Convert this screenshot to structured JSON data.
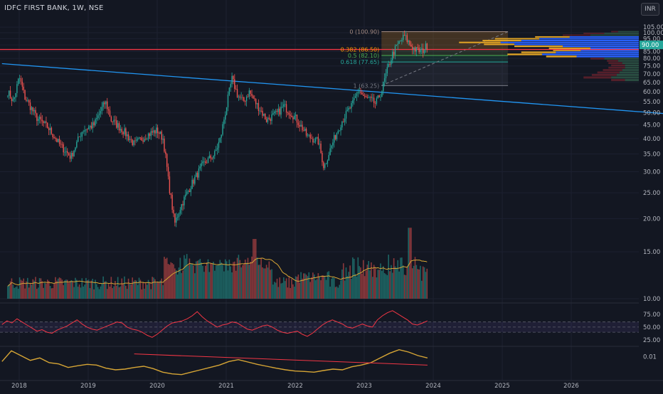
{
  "header": {
    "symbol_line": "IDFC FIRST BANK, 1W, NSE",
    "currency_badge": "INR"
  },
  "colors": {
    "background": "#131722",
    "grid": "#1e2230",
    "axis_text": "#b2b5be",
    "bull": "#26a69a",
    "bear": "#ef5350",
    "trendline": "#2196f3",
    "horizontal_line": "#f23645",
    "volume_ma": "#d6a535",
    "rsi_line": "#f23645",
    "rsi_band": "#7e57c2",
    "lower_line": "#d6a535",
    "lower_line_2": "#f23645",
    "fib_0": "#a1887f",
    "fib_382": "#ff9800",
    "fib_05": "#4caf50",
    "fib_618": "#26a69a",
    "vp_up": "#2962ff",
    "vp_down": "#e0a325"
  },
  "chart_data": {
    "type": "candlestick",
    "interval": "1W",
    "exchange": "NSE",
    "x_axis_labels": [
      "2018",
      "2019",
      "2020",
      "2021",
      "2022",
      "2023",
      "2024",
      "2025",
      "2026"
    ],
    "y_axis_labels": [
      "105.00",
      "100.00",
      "95.00",
      "90.00",
      "85.00",
      "80.00",
      "75.00",
      "70.00",
      "65.00",
      "60.00",
      "55.00",
      "50.00",
      "45.00",
      "40.00",
      "35.00",
      "30.00",
      "25.00",
      "20.00",
      "15.00",
      "10.00"
    ],
    "ylim": [
      8.5,
      107
    ],
    "y_scale": "log",
    "last_price_label": "90.00",
    "price_path": [
      [
        "2017-11",
        60
      ],
      [
        "2017-12",
        55
      ],
      [
        "2018-01",
        68
      ],
      [
        "2018-02",
        57
      ],
      [
        "2018-04",
        48
      ],
      [
        "2018-06",
        44
      ],
      [
        "2018-08",
        38
      ],
      [
        "2018-10",
        34
      ],
      [
        "2018-12",
        43
      ],
      [
        "2019-02",
        45
      ],
      [
        "2019-04",
        55
      ],
      [
        "2019-05",
        47
      ],
      [
        "2019-07",
        43
      ],
      [
        "2019-09",
        38
      ],
      [
        "2019-11",
        41
      ],
      [
        "2020-01",
        43
      ],
      [
        "2020-02",
        40
      ],
      [
        "2020-03",
        27
      ],
      [
        "2020-04",
        19
      ],
      [
        "2020-05",
        22
      ],
      [
        "2020-07",
        27
      ],
      [
        "2020-09",
        32
      ],
      [
        "2020-11",
        35
      ],
      [
        "2020-12",
        40
      ],
      [
        "2021-01",
        52
      ],
      [
        "2021-02",
        67
      ],
      [
        "2021-03",
        58
      ],
      [
        "2021-04",
        55
      ],
      [
        "2021-05",
        60
      ],
      [
        "2021-06",
        55
      ],
      [
        "2021-08",
        47
      ],
      [
        "2021-10",
        50
      ],
      [
        "2021-11",
        53
      ],
      [
        "2022-01",
        48
      ],
      [
        "2022-03",
        41
      ],
      [
        "2022-05",
        39
      ],
      [
        "2022-06",
        31
      ],
      [
        "2022-07",
        36
      ],
      [
        "2022-09",
        46
      ],
      [
        "2022-11",
        54
      ],
      [
        "2022-12",
        61
      ],
      [
        "2023-01",
        57
      ],
      [
        "2023-02",
        56
      ],
      [
        "2023-03",
        54
      ],
      [
        "2023-04",
        60
      ],
      [
        "2023-05",
        72
      ],
      [
        "2023-06",
        84
      ],
      [
        "2023-07",
        91
      ],
      [
        "2023-08",
        97
      ],
      [
        "2023-09",
        90
      ],
      [
        "2023-10",
        86
      ],
      [
        "2023-11",
        85
      ],
      [
        "2023-12",
        90
      ]
    ],
    "annotations": {
      "descending_trendline": {
        "from": [
          "2017-10",
          76.5
        ],
        "to": [
          "2027-06",
          49.5
        ]
      },
      "horizontal_line": 86.5,
      "fibonacci_retracement": {
        "levels": [
          {
            "ratio": "0",
            "price": "100.90",
            "label": "0 (100.90)"
          },
          {
            "ratio": "0.382",
            "price": "86.50",
            "label": "0.382 (86.50)"
          },
          {
            "ratio": "0.5",
            "price": "82.10",
            "label": "0.5 (82.10)"
          },
          {
            "ratio": "0.618",
            "price": "77.65",
            "label": "0.618 (77.65)"
          },
          {
            "ratio": "1",
            "price": "63.25",
            "label": "1 (63.25)"
          }
        ],
        "x_range": [
          "2023-04",
          "2025-02"
        ]
      }
    },
    "volume_profile": {
      "price_bins": [
        100,
        98.5,
        97,
        95.5,
        94,
        92.5,
        91,
        89.5,
        88,
        86.5,
        85,
        83.5,
        82,
        80.5,
        79,
        77.5,
        76,
        74.5,
        73,
        71.5,
        70,
        68.5,
        67,
        65.5
      ],
      "up_volume": [
        0.15,
        0.25,
        0.35,
        0.5,
        0.72,
        0.85,
        1.0,
        0.9,
        0.55,
        0.35,
        0.42,
        0.6,
        0.7,
        0.45,
        0.25,
        0.15,
        0.12,
        0.1,
        0.1,
        0.12,
        0.14,
        0.16,
        0.2,
        0.1
      ],
      "down_volume": [
        0.05,
        0.15,
        0.2,
        0.25,
        0.32,
        0.28,
        0.3,
        0.22,
        0.35,
        0.3,
        0.2,
        0.25,
        0.25,
        0.22,
        0.1,
        0.08,
        0.1,
        0.1,
        0.12,
        0.14,
        0.16,
        0.18,
        0.2,
        0.1
      ]
    },
    "volume": {
      "ma_period_shown": true,
      "relative_levels": "bars in bottom band of price pane"
    },
    "rsi": {
      "y_axis_labels": [
        "75.00",
        "50.00",
        "25.00"
      ],
      "ylim": [
        18,
        90
      ],
      "upper_band": 60,
      "lower_band": 40,
      "values": [
        55,
        62,
        58,
        66,
        60,
        54,
        48,
        42,
        45,
        40,
        38,
        44,
        48,
        52,
        58,
        64,
        56,
        50,
        46,
        44,
        48,
        52,
        56,
        60,
        58,
        50,
        46,
        44,
        40,
        34,
        30,
        36,
        44,
        52,
        58,
        60,
        62,
        66,
        72,
        80,
        70,
        62,
        56,
        50,
        54,
        56,
        60,
        58,
        52,
        46,
        44,
        48,
        52,
        54,
        50,
        44,
        40,
        38,
        40,
        42,
        36,
        32,
        38,
        46,
        54,
        60,
        64,
        60,
        56,
        50,
        48,
        52,
        56,
        52,
        50,
        64,
        72,
        78,
        82,
        76,
        70,
        64,
        56,
        54,
        58,
        62
      ]
    },
    "lower_indicator": {
      "y_axis_labels": [
        "0.01"
      ],
      "values": [
        0.008,
        0.0125,
        0.0105,
        0.0085,
        0.0095,
        0.0075,
        0.007,
        0.0055,
        0.0062,
        0.0068,
        0.0065,
        0.0052,
        0.0045,
        0.0048,
        0.0055,
        0.006,
        0.005,
        0.0035,
        0.0028,
        0.0025,
        0.0035,
        0.0045,
        0.0055,
        0.0065,
        0.008,
        0.0088,
        0.0078,
        0.0068,
        0.006,
        0.0052,
        0.0045,
        0.004,
        0.0038,
        0.0035,
        0.0042,
        0.0048,
        0.0045,
        0.0058,
        0.0065,
        0.0075,
        0.0095,
        0.0115,
        0.013,
        0.012,
        0.0105,
        0.0095
      ]
    }
  }
}
